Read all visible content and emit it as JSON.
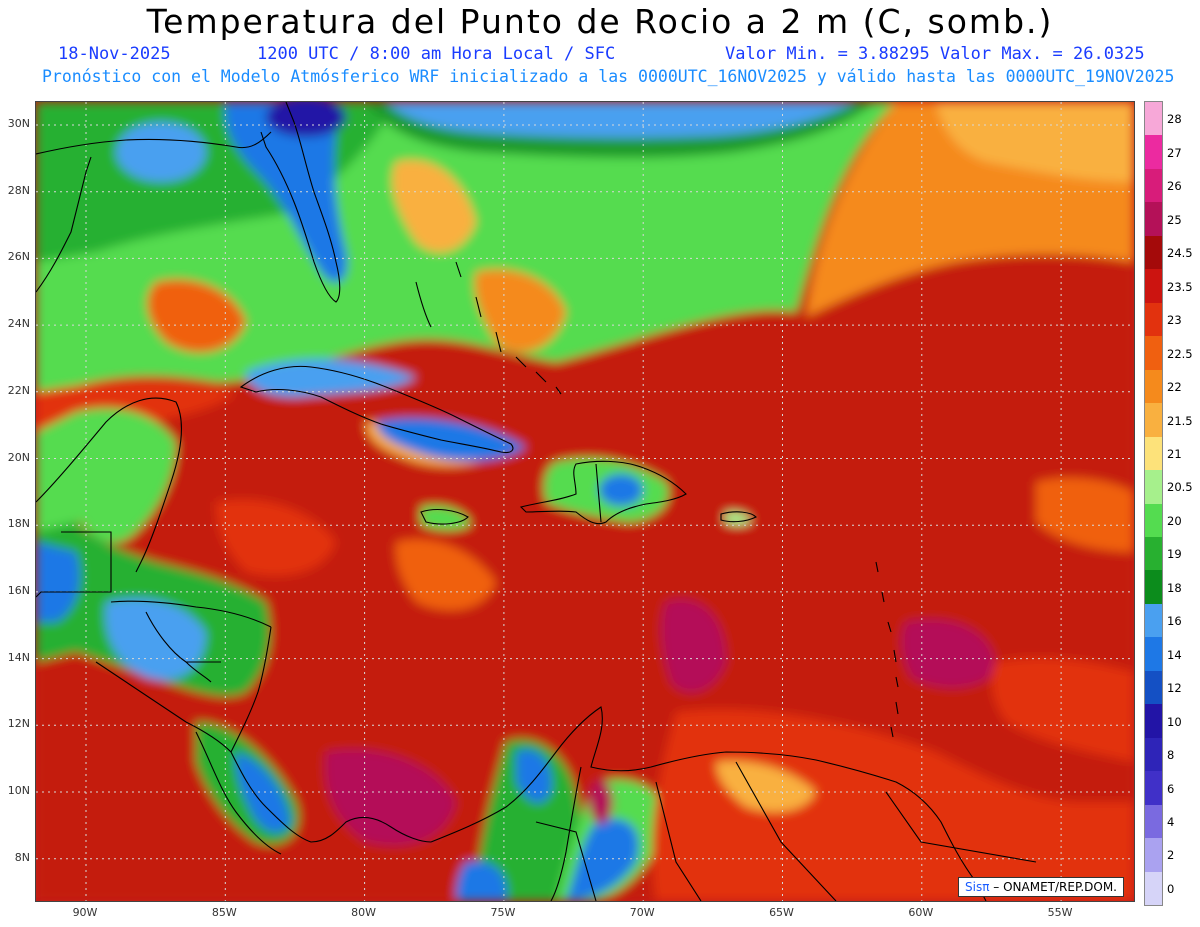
{
  "header": {
    "title": "Temperatura del Punto de Rocio a 2 m (C, somb.)",
    "date": "18-Nov-2025",
    "time": "1200 UTC / 8:00 am Hora Local / SFC",
    "minmax": "Valor Min. = 3.88295  Valor Max. = 26.0325",
    "model": "Pronóstico con el Modelo Atmósferico WRF inicializado a las 0000UTC_16NOV2025 y válido hasta las  0000UTC_19NOV2025"
  },
  "map": {
    "lat_labels": [
      "30N",
      "28N",
      "26N",
      "24N",
      "22N",
      "20N",
      "18N",
      "16N",
      "14N",
      "12N",
      "10N",
      "8N"
    ],
    "lon_labels": [
      "90W",
      "85W",
      "80W",
      "75W",
      "70W",
      "65W",
      "60W",
      "55W"
    ],
    "credit_brand": "Sisπ",
    "credit_text": "– ONAMET/REP.DOM."
  },
  "colorbar": {
    "labels": [
      "28",
      "27",
      "26",
      "25",
      "24.5",
      "23.5",
      "23",
      "22.5",
      "22",
      "21.5",
      "21",
      "20.5",
      "20",
      "19",
      "18",
      "16",
      "14",
      "12",
      "10",
      "8",
      "6",
      "4",
      "2",
      "0"
    ],
    "colors": [
      "#f7a8d8",
      "#ec2aa0",
      "#d81c7a",
      "#b41158",
      "#a40a0a",
      "#cc1410",
      "#e2320e",
      "#f06010",
      "#f58a1c",
      "#f9b040",
      "#fde27a",
      "#a6f08c",
      "#54dc50",
      "#28b030",
      "#0c8c1c",
      "#4aa0f0",
      "#1e78e6",
      "#1450c4",
      "#2214a6",
      "#2e24b8",
      "#4030c8",
      "#7a6ae0",
      "#aaa2f0",
      "#d6d4f8"
    ]
  }
}
